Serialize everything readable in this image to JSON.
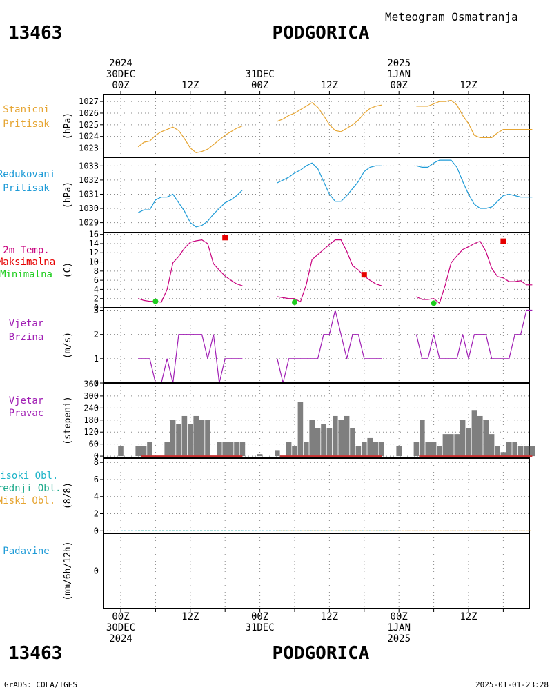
{
  "header": {
    "station_id": "13463",
    "station_name": "PODGORICA",
    "product": "Meteogram Osmatranja"
  },
  "footer": {
    "credit": "GrADS: COLA/IGES",
    "timestamp": "2025-01-01-23:28"
  },
  "time_axis": {
    "hours_total": 72,
    "top_labels": [
      {
        "hour": 0,
        "lines": [
          "2024",
          "30DEC",
          "00Z"
        ]
      },
      {
        "hour": 12,
        "lines": [
          "12Z"
        ]
      },
      {
        "hour": 24,
        "lines": [
          "31DEC",
          "00Z"
        ]
      },
      {
        "hour": 36,
        "lines": [
          "12Z"
        ]
      },
      {
        "hour": 48,
        "lines": [
          "2025",
          "1JAN",
          "00Z"
        ]
      },
      {
        "hour": 60,
        "lines": [
          "12Z"
        ]
      }
    ],
    "bottom_labels": [
      {
        "hour": 0,
        "lines": [
          "00Z",
          "30DEC",
          "2024"
        ]
      },
      {
        "hour": 12,
        "lines": [
          "12Z"
        ]
      },
      {
        "hour": 24,
        "lines": [
          "00Z",
          "31DEC"
        ]
      },
      {
        "hour": 36,
        "lines": [
          "12Z"
        ]
      },
      {
        "hour": 48,
        "lines": [
          "00Z",
          "1JAN",
          "2025"
        ]
      },
      {
        "hour": 60,
        "lines": [
          "12Z"
        ]
      }
    ]
  },
  "colors": {
    "station_pressure": "#e6a532",
    "reduced_pressure": "#1e9bd7",
    "temperature": "#c8007d",
    "maximum": "#e60000",
    "minimum": "#1ecd1e",
    "wind_speed": "#a01eb4",
    "wind_direction_bar": "#7f7f7f",
    "wind_direction_base": "#c83232",
    "high_clouds": "#1eb4c8",
    "middle_clouds": "#1eaa8c",
    "low_clouds": "#e6a532",
    "precipitation": "#1e9bd7"
  },
  "chart_data": [
    {
      "type": "line",
      "panel": "station_pressure",
      "labels": [
        "Stanicni",
        "Pritisak"
      ],
      "unit": "(hPa)",
      "yticks": [
        1023,
        1024,
        1025,
        1026,
        1027
      ],
      "ylim": [
        1022.2,
        1027.6
      ],
      "series": [
        {
          "x": [
            3,
            4,
            5,
            6,
            7,
            8,
            9,
            10,
            11,
            12,
            13,
            14,
            15,
            16,
            17,
            18,
            19,
            20,
            21
          ],
          "y": [
            1023.1,
            1023.5,
            1023.6,
            1024.1,
            1024.4,
            1024.6,
            1024.8,
            1024.5,
            1023.8,
            1023.0,
            1022.6,
            1022.7,
            1022.9,
            1023.3,
            1023.7,
            1024.1,
            1024.4,
            1024.7,
            1024.9
          ]
        },
        {
          "x": [
            27,
            28,
            29,
            30,
            31,
            32,
            33,
            34,
            35,
            36,
            37,
            38,
            39,
            40,
            41,
            42,
            43,
            44,
            45
          ],
          "y": [
            1025.3,
            1025.5,
            1025.8,
            1026.0,
            1026.3,
            1026.6,
            1026.9,
            1026.5,
            1025.8,
            1025.0,
            1024.5,
            1024.4,
            1024.7,
            1025.0,
            1025.4,
            1026.0,
            1026.4,
            1026.6,
            1026.7
          ]
        },
        {
          "x": [
            51,
            52,
            53,
            54,
            55,
            56,
            57,
            58,
            59,
            60,
            61,
            62,
            63,
            64,
            65,
            66,
            67,
            68,
            69,
            70,
            71
          ],
          "y": [
            1026.6,
            1026.6,
            1026.6,
            1026.8,
            1027.0,
            1027.0,
            1027.1,
            1026.7,
            1025.8,
            1025.1,
            1024.1,
            1023.9,
            1023.9,
            1023.9,
            1024.3,
            1024.6,
            1024.6,
            1024.6,
            1024.6,
            1024.6,
            1024.6
          ]
        }
      ]
    },
    {
      "type": "line",
      "panel": "reduced_pressure",
      "labels": [
        "Redukovani",
        "Pritisak"
      ],
      "unit": "(hPa)",
      "yticks": [
        1029,
        1030,
        1031,
        1032,
        1033
      ],
      "ylim": [
        1028.3,
        1033.6
      ],
      "series": [
        {
          "x": [
            3,
            4,
            5,
            6,
            7,
            8,
            9,
            10,
            11,
            12,
            13,
            14,
            15,
            16,
            17,
            18,
            19,
            20,
            21
          ],
          "y": [
            1029.7,
            1029.9,
            1029.9,
            1030.6,
            1030.8,
            1030.8,
            1031.0,
            1030.4,
            1029.8,
            1029.0,
            1028.7,
            1028.8,
            1029.1,
            1029.6,
            1030.0,
            1030.4,
            1030.6,
            1030.9,
            1031.3
          ]
        },
        {
          "x": [
            27,
            28,
            29,
            30,
            31,
            32,
            33,
            34,
            35,
            36,
            37,
            38,
            39,
            40,
            41,
            42,
            43,
            44,
            45
          ],
          "y": [
            1031.8,
            1032.0,
            1032.2,
            1032.5,
            1032.7,
            1033.0,
            1033.2,
            1032.8,
            1031.9,
            1031.0,
            1030.5,
            1030.5,
            1030.9,
            1031.4,
            1031.9,
            1032.6,
            1032.9,
            1033.0,
            1033.0
          ]
        },
        {
          "x": [
            51,
            52,
            53,
            54,
            55,
            56,
            57,
            58,
            59,
            60,
            61,
            62,
            63,
            64,
            65,
            66,
            67,
            68,
            69,
            70,
            71
          ],
          "y": [
            1033.0,
            1032.9,
            1032.9,
            1033.2,
            1033.4,
            1033.4,
            1033.4,
            1032.9,
            1031.9,
            1031.0,
            1030.3,
            1030.0,
            1030.0,
            1030.1,
            1030.5,
            1030.9,
            1031.0,
            1030.9,
            1030.8,
            1030.8,
            1030.8
          ]
        }
      ]
    },
    {
      "type": "line",
      "panel": "temperature",
      "labels": [
        "2m Temp.",
        "Maksimalna",
        "Minimalna"
      ],
      "unit": "(C)",
      "yticks": [
        0,
        2,
        4,
        6,
        8,
        10,
        12,
        14,
        16
      ],
      "ylim": [
        0,
        16.4
      ],
      "series": [
        {
          "x": [
            3,
            4,
            5,
            6,
            7,
            8,
            9,
            10,
            11,
            12,
            13,
            14,
            15,
            16,
            17,
            18,
            19,
            20,
            21
          ],
          "y": [
            2.0,
            1.6,
            1.4,
            1.4,
            1.2,
            4.0,
            9.8,
            11.2,
            13.0,
            14.3,
            14.6,
            14.8,
            14.0,
            9.6,
            8.2,
            6.9,
            6.0,
            5.2,
            4.8
          ]
        },
        {
          "x": [
            27,
            28,
            29,
            30,
            31,
            32,
            33,
            34,
            35,
            36,
            37,
            38,
            39,
            40,
            41,
            42,
            43,
            44,
            45
          ],
          "y": [
            2.4,
            2.2,
            2.0,
            2.0,
            1.3,
            5.0,
            10.5,
            11.6,
            12.7,
            13.8,
            14.8,
            14.8,
            12.3,
            9.2,
            8.2,
            6.9,
            6.0,
            5.2,
            4.8
          ]
        },
        {
          "x": [
            51,
            52,
            53,
            54,
            55,
            56,
            57,
            58,
            59,
            60,
            61,
            62,
            63,
            64,
            65,
            66,
            67,
            68,
            69,
            70,
            71
          ],
          "y": [
            2.4,
            1.8,
            1.8,
            2.0,
            1.0,
            5.0,
            9.8,
            11.3,
            12.7,
            13.3,
            14.0,
            14.5,
            12.3,
            8.6,
            6.8,
            6.5,
            5.7,
            5.7,
            5.9,
            5.0,
            5.0
          ]
        }
      ],
      "max_points": [
        {
          "x": 18,
          "y": 15.3
        },
        {
          "x": 42,
          "y": 7.2
        },
        {
          "x": 66,
          "y": 14.5
        }
      ],
      "min_points": [
        {
          "x": 6,
          "y": 1.4
        },
        {
          "x": 30,
          "y": 1.2
        },
        {
          "x": 54,
          "y": 1.0
        }
      ]
    },
    {
      "type": "line",
      "panel": "wind_speed",
      "labels": [
        "Vjetar",
        "Brzina"
      ],
      "unit": "(m/s)",
      "yticks": [
        0,
        1,
        2,
        3
      ],
      "ylim": [
        0,
        3.1
      ],
      "series": [
        {
          "x": [
            3,
            4,
            5,
            6,
            7,
            8,
            9,
            10,
            11,
            12,
            13,
            14,
            15,
            16,
            17,
            18,
            19,
            20,
            21
          ],
          "y": [
            1,
            1,
            1,
            0,
            0,
            1,
            0,
            2,
            2,
            2,
            2,
            2,
            1,
            2,
            0,
            1,
            1,
            1,
            1
          ]
        },
        {
          "x": [
            27,
            28,
            29,
            30,
            31,
            32,
            33,
            34,
            35,
            36,
            37,
            38,
            39,
            40,
            41,
            42,
            43,
            44,
            45
          ],
          "y": [
            1,
            0,
            1,
            1,
            1,
            1,
            1,
            1,
            2,
            2,
            3,
            2,
            1,
            2,
            2,
            1,
            1,
            1,
            1
          ]
        },
        {
          "x": [
            51,
            52,
            53,
            54,
            55,
            56,
            57,
            58,
            59,
            60,
            61,
            62,
            63,
            64,
            65,
            66,
            67,
            68,
            69,
            70,
            71
          ],
          "y": [
            2,
            1,
            1,
            2,
            1,
            1,
            1,
            1,
            2,
            1,
            2,
            2,
            2,
            1,
            1,
            1,
            1,
            2,
            2,
            3,
            3
          ]
        }
      ]
    },
    {
      "type": "bar",
      "panel": "wind_direction",
      "labels": [
        "Vjetar",
        "Pravac"
      ],
      "unit": "(stepeni)",
      "yticks": [
        0,
        60,
        120,
        180,
        240,
        300,
        360
      ],
      "ylim": [
        -10,
        365
      ],
      "x": [
        0,
        3,
        4,
        5,
        6,
        7,
        8,
        9,
        10,
        11,
        12,
        13,
        14,
        15,
        16,
        17,
        18,
        19,
        20,
        21,
        24,
        27,
        28,
        29,
        30,
        31,
        32,
        33,
        34,
        35,
        36,
        37,
        38,
        39,
        40,
        41,
        42,
        43,
        44,
        45,
        48,
        51,
        52,
        53,
        54,
        55,
        56,
        57,
        58,
        59,
        60,
        61,
        62,
        63,
        64,
        65,
        66,
        67,
        68,
        69,
        70,
        71
      ],
      "values": [
        50,
        50,
        50,
        70,
        0,
        0,
        70,
        180,
        160,
        200,
        160,
        200,
        180,
        180,
        0,
        70,
        70,
        70,
        70,
        70,
        10,
        30,
        0,
        70,
        50,
        270,
        70,
        180,
        140,
        160,
        140,
        200,
        180,
        200,
        140,
        50,
        70,
        90,
        70,
        70,
        50,
        70,
        180,
        70,
        70,
        50,
        110,
        110,
        110,
        180,
        140,
        230,
        200,
        180,
        110,
        50,
        20,
        70,
        70,
        50,
        50,
        50
      ]
    },
    {
      "type": "line",
      "panel": "clouds",
      "labels": [
        "Visoki Obl.",
        "Srednji Obl.",
        "Niski Obl."
      ],
      "unit": "(8/8)",
      "yticks": [
        0,
        2,
        4,
        6,
        8
      ],
      "ylim": [
        -0.3,
        8.5
      ],
      "series": [
        {
          "name": "Visoki Obl.",
          "x": [
            0,
            24,
            48
          ],
          "y": [
            0,
            0,
            0
          ]
        },
        {
          "name": "Srednji Obl.",
          "x": [
            3,
            21
          ],
          "y": [
            0,
            0
          ]
        },
        {
          "name": "Niski Obl.",
          "x": [
            27,
            45,
            51,
            71
          ],
          "y": [
            0,
            0,
            0,
            0
          ]
        }
      ]
    },
    {
      "type": "line",
      "panel": "precipitation",
      "labels": [
        "Padavine"
      ],
      "unit": "(mm/6h/12h)",
      "yticks": [
        0
      ],
      "ylim": [
        -1,
        1
      ],
      "series": [
        {
          "x": [
            3,
            21,
            27,
            45,
            51,
            71
          ],
          "y": [
            0,
            0,
            0,
            0,
            0,
            0
          ]
        }
      ]
    }
  ]
}
